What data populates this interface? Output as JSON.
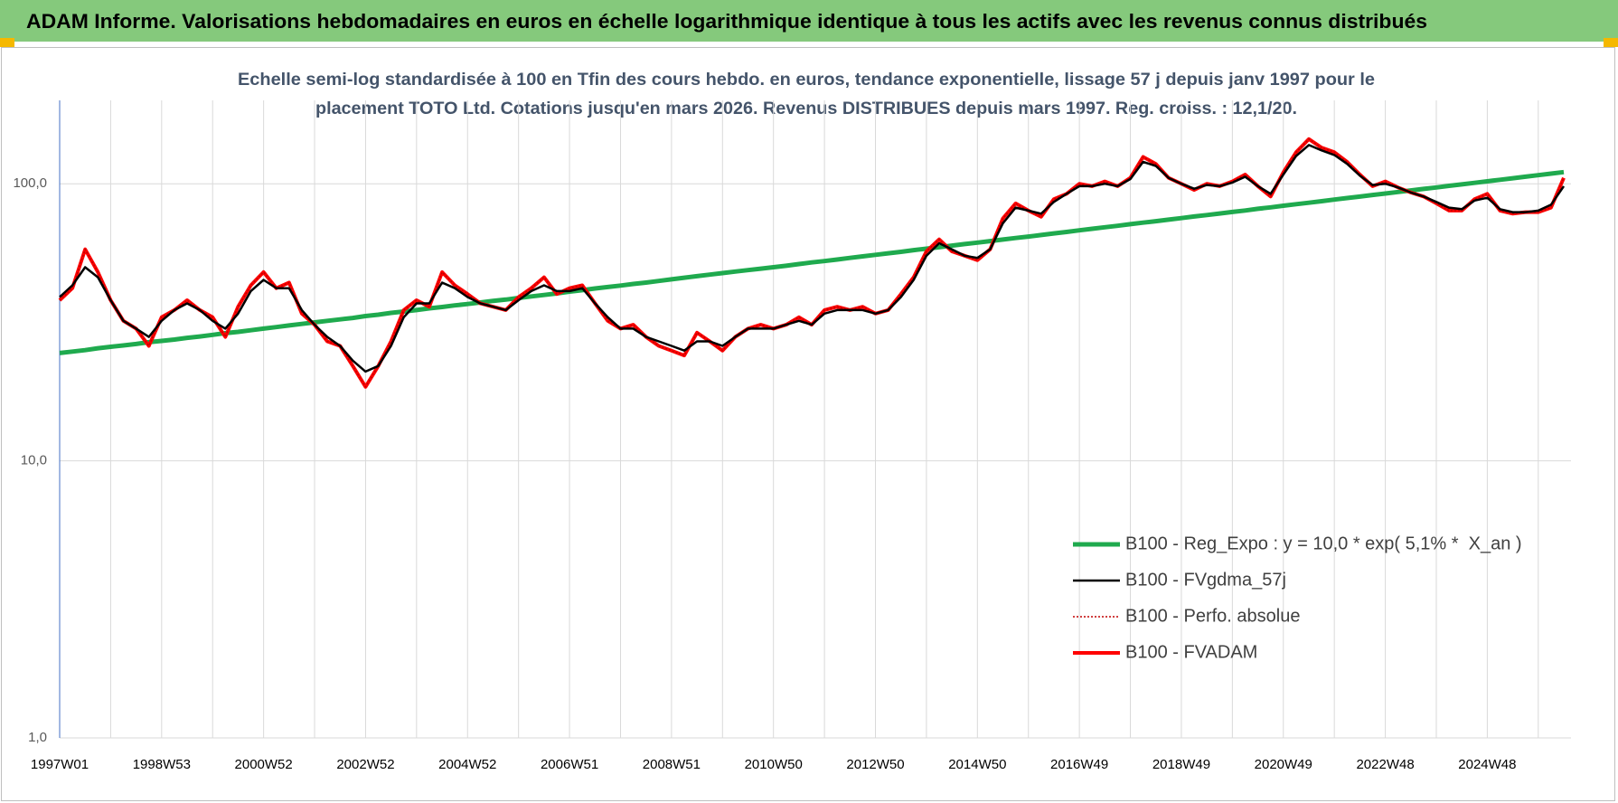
{
  "header": {
    "title": "ADAM Informe. Valorisations hebdomadaires en euros en échelle logarithmique identique à tous les actifs avec les revenus connus distribués"
  },
  "chart_data": {
    "type": "line",
    "title": [
      "Echelle semi-log standardisée à 100 en Tfin des cours hebdo. en euros, tendance exponentielle, lissage 57 j depuis janv 1997 pour le",
      "placement TOTO Ltd. Cotations jusqu'en mars 2026. Revenus DISTRIBUES depuis mars 1997. Reg. croiss. : 12,1/20."
    ],
    "categories": [
      "1997W01",
      null,
      null,
      null,
      null,
      null,
      null,
      null,
      "1998W53",
      null,
      null,
      null,
      null,
      null,
      null,
      null,
      "2000W52",
      null,
      null,
      null,
      null,
      null,
      null,
      null,
      "2002W52",
      null,
      null,
      null,
      null,
      null,
      null,
      null,
      "2004W52",
      null,
      null,
      null,
      null,
      null,
      null,
      null,
      "2006W51",
      null,
      null,
      null,
      null,
      null,
      null,
      null,
      "2008W51",
      null,
      null,
      null,
      null,
      null,
      null,
      null,
      "2010W50",
      null,
      null,
      null,
      null,
      null,
      null,
      null,
      "2012W50",
      null,
      null,
      null,
      null,
      null,
      null,
      null,
      "2014W50",
      null,
      null,
      null,
      null,
      null,
      null,
      null,
      "2016W49",
      null,
      null,
      null,
      null,
      null,
      null,
      null,
      "2018W49",
      null,
      null,
      null,
      null,
      null,
      null,
      null,
      "2020W49",
      null,
      null,
      null,
      null,
      null,
      null,
      null,
      "2022W48",
      null,
      null,
      null,
      null,
      null,
      null,
      null,
      "2024W48",
      null,
      null,
      null,
      null,
      null,
      null
    ],
    "series": [
      {
        "name": "B100 - Reg_Expo : y = 10,0 * exp( 5,1% *  X_an )",
        "color": "#1faa4e",
        "values": [
          24.5,
          24.8,
          25.1,
          25.5,
          25.8,
          26.1,
          26.4,
          26.8,
          27.1,
          27.4,
          27.8,
          28.1,
          28.5,
          28.9,
          29.2,
          29.6,
          30.0,
          30.4,
          30.8,
          31.2,
          31.6,
          32.0,
          32.4,
          32.8,
          33.3,
          33.7,
          34.2,
          34.6,
          35.0,
          35.5,
          35.9,
          36.4,
          36.8,
          37.3,
          37.8,
          38.2,
          38.7,
          39.2,
          39.7,
          40.2,
          40.8,
          41.3,
          41.9,
          42.4,
          42.9,
          43.5,
          44.0,
          44.6,
          45.2,
          45.8,
          46.4,
          47.0,
          47.6,
          48.2,
          48.8,
          49.4,
          50.0,
          50.6,
          51.3,
          52.0,
          52.6,
          53.3,
          54.0,
          54.7,
          55.4,
          56.1,
          56.8,
          57.6,
          58.3,
          59.0,
          59.8,
          60.6,
          61.3,
          62.1,
          62.9,
          63.7,
          64.5,
          65.3,
          66.2,
          67.0,
          67.9,
          68.8,
          69.7,
          70.5,
          71.5,
          72.4,
          73.3,
          74.2,
          75.2,
          76.2,
          77.1,
          78.1,
          79.1,
          80.1,
          81.2,
          82.2,
          83.3,
          84.4,
          85.4,
          86.5,
          87.7,
          88.8,
          89.9,
          91.1,
          92.2,
          93.4,
          94.6,
          95.8,
          97.0,
          98.3,
          99.5,
          100.8,
          102.1,
          103.4,
          104.7,
          106.1,
          107.4,
          108.8,
          110.2
        ]
      },
      {
        "name": "B100 - FVgdma_57j",
        "color": "#000000",
        "values": [
          39,
          43,
          50,
          46,
          38,
          32,
          30,
          28,
          32,
          35,
          37,
          35,
          32,
          30,
          34,
          41,
          45,
          42,
          42,
          35,
          31,
          28,
          26,
          23,
          21,
          22,
          26,
          33,
          37,
          37,
          44,
          42,
          39,
          37,
          36,
          35,
          38,
          41,
          43,
          41,
          41,
          42,
          37,
          33,
          30,
          30,
          28,
          27,
          26,
          25,
          27,
          27,
          26,
          28,
          30,
          30,
          30,
          31,
          32,
          31,
          34,
          35,
          35,
          35,
          34,
          35,
          39,
          45,
          55,
          61,
          58,
          55,
          54,
          58,
          72,
          82,
          80,
          78,
          86,
          92,
          98,
          98,
          100,
          98,
          104,
          120,
          116,
          105,
          100,
          96,
          99,
          98,
          101,
          106,
          98,
          92,
          108,
          126,
          138,
          132,
          127,
          118,
          107,
          99,
          100,
          97,
          93,
          90,
          86,
          82,
          81,
          87,
          89,
          81,
          79,
          79,
          80,
          84,
          98
        ]
      },
      {
        "name": "B100 - Perfo. absolue",
        "color": "#c00000",
        "dash": "dotted",
        "values": [
          38,
          42,
          58,
          48,
          38,
          32,
          30,
          26,
          33,
          35,
          38,
          35,
          33,
          28,
          36,
          43,
          48,
          42,
          44,
          34,
          31,
          27,
          26,
          22,
          18.5,
          22,
          27,
          35,
          38,
          36,
          48,
          43,
          40,
          37,
          36,
          35,
          39,
          42,
          46,
          40,
          42,
          43,
          37,
          32,
          30,
          31,
          28,
          26,
          25,
          24,
          29,
          27,
          25,
          28,
          30,
          31,
          30,
          31,
          33,
          31,
          35,
          36,
          35,
          36,
          34,
          35,
          40,
          46,
          57,
          63,
          57,
          55,
          53,
          58,
          75,
          85,
          80,
          76,
          88,
          92,
          100,
          98,
          102,
          98,
          105,
          125,
          118,
          105,
          100,
          95,
          100,
          98,
          102,
          108,
          98,
          90,
          110,
          130,
          145,
          135,
          130,
          120,
          108,
          98,
          102,
          97,
          93,
          90,
          85,
          80,
          80,
          88,
          92,
          80,
          78,
          79,
          79,
          82,
          105
        ]
      },
      {
        "name": "B100 - FVADAM",
        "color": "#ff0000",
        "values": [
          38,
          42,
          58,
          48,
          38,
          32,
          30,
          26,
          33,
          35,
          38,
          35,
          33,
          28,
          36,
          43,
          48,
          42,
          44,
          34,
          31,
          27,
          26,
          22,
          18.5,
          22,
          27,
          35,
          38,
          36,
          48,
          43,
          40,
          37,
          36,
          35,
          39,
          42,
          46,
          40,
          42,
          43,
          37,
          32,
          30,
          31,
          28,
          26,
          25,
          24,
          29,
          27,
          25,
          28,
          30,
          31,
          30,
          31,
          33,
          31,
          35,
          36,
          35,
          36,
          34,
          35,
          40,
          46,
          57,
          63,
          57,
          55,
          53,
          58,
          75,
          85,
          80,
          76,
          88,
          92,
          100,
          98,
          102,
          98,
          105,
          125,
          118,
          105,
          100,
          95,
          100,
          98,
          102,
          108,
          98,
          90,
          110,
          130,
          145,
          135,
          130,
          120,
          108,
          98,
          102,
          97,
          93,
          90,
          85,
          80,
          80,
          88,
          92,
          80,
          78,
          79,
          79,
          82,
          105
        ]
      }
    ],
    "ylim": [
      1,
      200
    ],
    "yticks": [
      {
        "value": 1,
        "label": "1,0"
      },
      {
        "value": 10,
        "label": "10,0"
      },
      {
        "value": 100,
        "label": "100,0"
      }
    ],
    "log_scale": true,
    "grid": true,
    "legend_position": "right"
  }
}
